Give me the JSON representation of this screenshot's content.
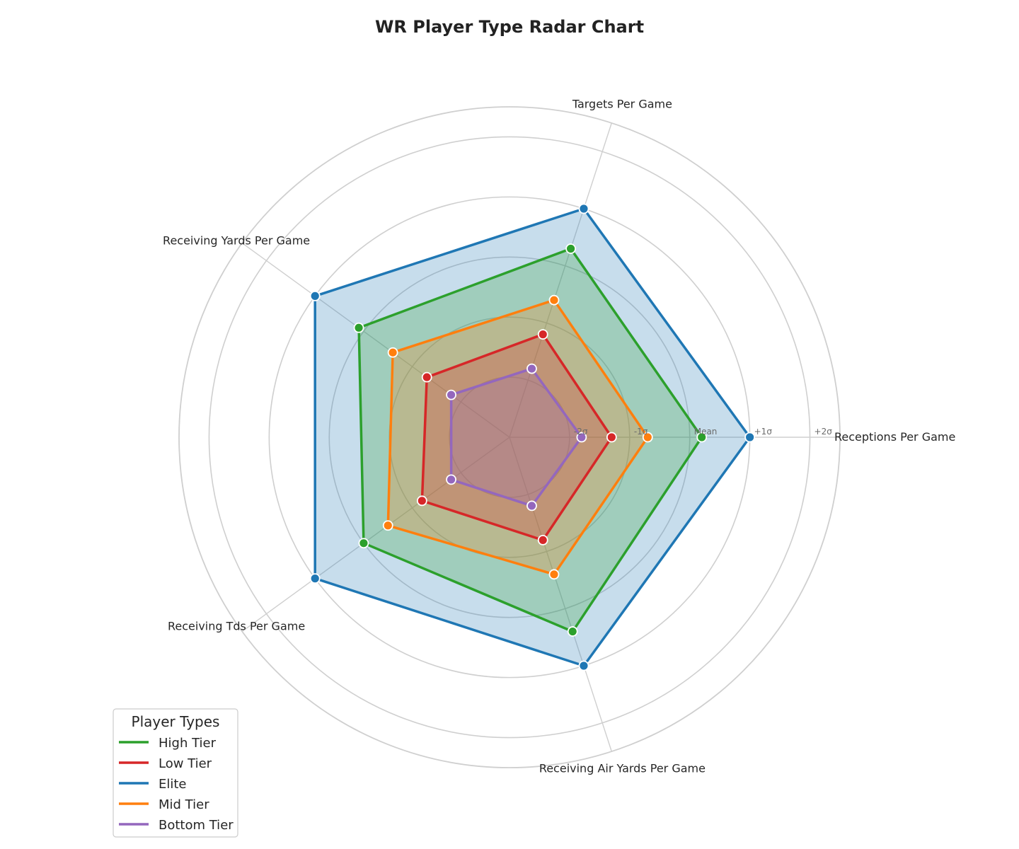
{
  "chart_data": {
    "type": "radar",
    "title": "WR Player Type Radar Chart",
    "axes": [
      "Receptions Per Game",
      "Targets Per Game",
      "Receiving Yards Per Game",
      "Receiving Tds Per Game",
      "Receiving Air Yards Per Game"
    ],
    "ring_labels": [
      "-2σ",
      "-1σ",
      "Mean",
      "+1σ",
      "+2σ"
    ],
    "range": [
      -3,
      2.5
    ],
    "grid": true,
    "legend": {
      "title": "Player Types",
      "position": "bottom-left"
    },
    "series": [
      {
        "name": "Elite",
        "color": "#1f77b4",
        "fill_opacity": 0.25,
        "values": [
          1.0,
          1.0,
          1.0,
          1.0,
          1.0
        ]
      },
      {
        "name": "High Tier",
        "color": "#2ca02c",
        "fill_opacity": 0.25,
        "values": [
          0.2,
          0.3,
          0.1,
          0.0,
          0.4
        ]
      },
      {
        "name": "Mid Tier",
        "color": "#ff7f0e",
        "fill_opacity": 0.25,
        "values": [
          -0.7,
          -0.6,
          -0.6,
          -0.5,
          -0.6
        ]
      },
      {
        "name": "Low Tier",
        "color": "#d62728",
        "fill_opacity": 0.25,
        "values": [
          -1.3,
          -1.2,
          -1.3,
          -1.2,
          -1.2
        ]
      },
      {
        "name": "Bottom Tier",
        "color": "#9467bd",
        "fill_opacity": 0.25,
        "values": [
          -1.8,
          -1.8,
          -1.8,
          -1.8,
          -1.8
        ]
      }
    ],
    "legend_order": [
      "High Tier",
      "Low Tier",
      "Elite",
      "Mid Tier",
      "Bottom Tier"
    ]
  }
}
